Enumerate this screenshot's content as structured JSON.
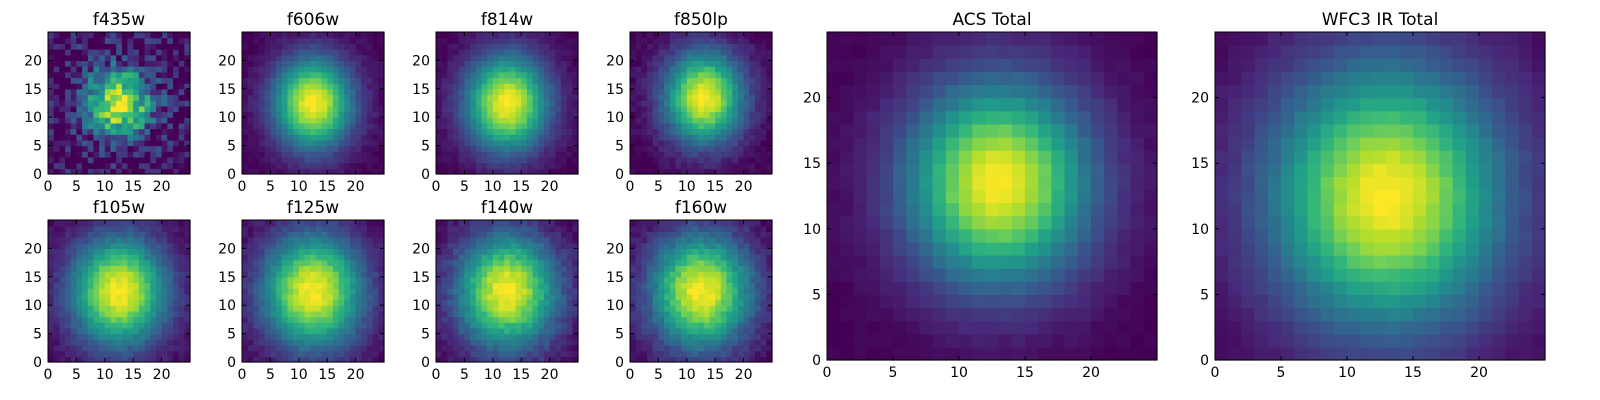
{
  "chart_data": [
    {
      "type": "heatmap",
      "title": "f435w",
      "xlabel": "",
      "ylabel": "",
      "xlim": [
        0,
        25
      ],
      "ylim": [
        0,
        25
      ],
      "xticks": [
        0,
        5,
        10,
        15,
        20
      ],
      "yticks": [
        0,
        5,
        10,
        15,
        20
      ],
      "grid": false,
      "shape": [
        25,
        25
      ],
      "peak": [
        12,
        12
      ],
      "sigma_x": 3.0,
      "sigma_y": 3.2,
      "noise": 0.22
    },
    {
      "type": "heatmap",
      "title": "f606w",
      "xlabel": "",
      "ylabel": "",
      "xlim": [
        0,
        25
      ],
      "ylim": [
        0,
        25
      ],
      "xticks": [
        0,
        5,
        10,
        15,
        20
      ],
      "yticks": [
        0,
        5,
        10,
        15,
        20
      ],
      "grid": false,
      "shape": [
        25,
        25
      ],
      "peak": [
        12,
        12
      ],
      "sigma_x": 3.6,
      "sigma_y": 4.2,
      "noise": 0.03
    },
    {
      "type": "heatmap",
      "title": "f814w",
      "xlabel": "",
      "ylabel": "",
      "xlim": [
        0,
        25
      ],
      "ylim": [
        0,
        25
      ],
      "xticks": [
        0,
        5,
        10,
        15,
        20
      ],
      "yticks": [
        0,
        5,
        10,
        15,
        20
      ],
      "grid": false,
      "shape": [
        25,
        25
      ],
      "peak": [
        12,
        12
      ],
      "sigma_x": 3.8,
      "sigma_y": 4.4,
      "noise": 0.03
    },
    {
      "type": "heatmap",
      "title": "f850lp",
      "xlabel": "",
      "ylabel": "",
      "xlim": [
        0,
        25
      ],
      "ylim": [
        0,
        25
      ],
      "xticks": [
        0,
        5,
        10,
        15,
        20
      ],
      "yticks": [
        0,
        5,
        10,
        15,
        20
      ],
      "grid": false,
      "shape": [
        25,
        25
      ],
      "peak": [
        12.5,
        13
      ],
      "sigma_x": 3.6,
      "sigma_y": 4.2,
      "noise": 0.04
    },
    {
      "type": "heatmap",
      "title": "f105w",
      "xlabel": "",
      "ylabel": "",
      "xlim": [
        0,
        25
      ],
      "ylim": [
        0,
        25
      ],
      "xticks": [
        0,
        5,
        10,
        15,
        20
      ],
      "yticks": [
        0,
        5,
        10,
        15,
        20
      ],
      "grid": false,
      "shape": [
        25,
        25
      ],
      "peak": [
        12,
        12
      ],
      "sigma_x": 4.4,
      "sigma_y": 5.0,
      "noise": 0.04
    },
    {
      "type": "heatmap",
      "title": "f125w",
      "xlabel": "",
      "ylabel": "",
      "xlim": [
        0,
        25
      ],
      "ylim": [
        0,
        25
      ],
      "xticks": [
        0,
        5,
        10,
        15,
        20
      ],
      "yticks": [
        0,
        5,
        10,
        15,
        20
      ],
      "grid": false,
      "shape": [
        25,
        25
      ],
      "peak": [
        12,
        12
      ],
      "sigma_x": 4.6,
      "sigma_y": 5.2,
      "noise": 0.04
    },
    {
      "type": "heatmap",
      "title": "f140w",
      "xlabel": "",
      "ylabel": "",
      "xlim": [
        0,
        25
      ],
      "ylim": [
        0,
        25
      ],
      "xticks": [
        0,
        5,
        10,
        15,
        20
      ],
      "yticks": [
        0,
        5,
        10,
        15,
        20
      ],
      "grid": false,
      "shape": [
        25,
        25
      ],
      "peak": [
        12,
        12
      ],
      "sigma_x": 4.6,
      "sigma_y": 5.2,
      "noise": 0.05
    },
    {
      "type": "heatmap",
      "title": "f160w",
      "xlabel": "",
      "ylabel": "",
      "xlim": [
        0,
        25
      ],
      "ylim": [
        0,
        25
      ],
      "xticks": [
        0,
        5,
        10,
        15,
        20
      ],
      "yticks": [
        0,
        5,
        10,
        15,
        20
      ],
      "grid": false,
      "shape": [
        25,
        25
      ],
      "peak": [
        12,
        12
      ],
      "sigma_x": 4.6,
      "sigma_y": 5.2,
      "noise": 0.05
    },
    {
      "type": "heatmap",
      "title": "ACS Total",
      "xlabel": "",
      "ylabel": "",
      "xlim": [
        0,
        25
      ],
      "ylim": [
        0,
        25
      ],
      "xticks": [
        0,
        5,
        10,
        15,
        20
      ],
      "yticks": [
        0,
        5,
        10,
        15,
        20
      ],
      "grid": false,
      "shape": [
        25,
        25
      ],
      "peak": [
        12.5,
        13
      ],
      "sigma_x": 3.6,
      "sigma_y": 4.0,
      "noise": 0.015
    },
    {
      "type": "heatmap",
      "title": "WFC3 IR Total",
      "xlabel": "",
      "ylabel": "",
      "xlim": [
        0,
        25
      ],
      "ylim": [
        0,
        25
      ],
      "xticks": [
        0,
        5,
        10,
        15,
        20
      ],
      "yticks": [
        0,
        5,
        10,
        15,
        20
      ],
      "grid": false,
      "shape": [
        25,
        25
      ],
      "peak": [
        12.5,
        12
      ],
      "sigma_x": 4.6,
      "sigma_y": 5.2,
      "noise": 0.015
    }
  ],
  "colormap": [
    "#440154",
    "#482878",
    "#3e4989",
    "#31688e",
    "#26828e",
    "#1f9e89",
    "#35b779",
    "#6ece58",
    "#b5de2b",
    "#fde725"
  ]
}
